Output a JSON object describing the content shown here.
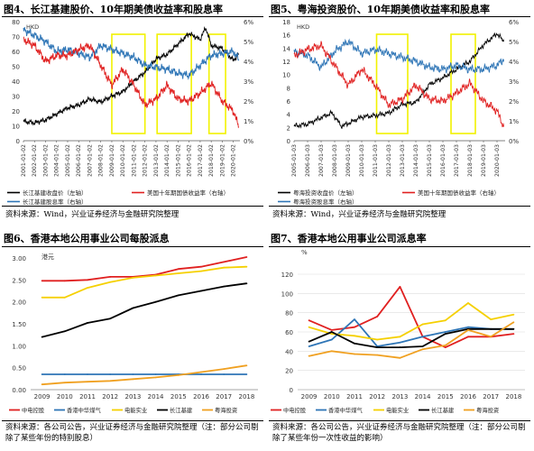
{
  "panels": {
    "fig4": {
      "title": "图4、长江基建股价、10年期美债收益率和股息率",
      "source": "资料来源：Wind，兴业证券经济与金融研究院整理"
    },
    "fig5": {
      "title": "图5、粤海投资股价、10年期美债收益率和股息率",
      "source": "资料来源：Wind，兴业证券经济与金融研究院整理"
    },
    "fig6": {
      "title": "图6、香港本地公用事业公司每股派息",
      "source": "资料来源：各公司公告，兴业证券经济与金融研究院整理（注：部分公司剔除了某些年份的特别股息）"
    },
    "fig7": {
      "title": "图7、香港本地公用事业公司派息率",
      "source": "资料来源：各公司公告，兴业证券经济与金融研究院整理（注：部分公司剔除了某些年份一次性收益的影响）"
    }
  },
  "chart_data": [
    {
      "id": "fig4",
      "type": "line",
      "unit_left": "HKD",
      "x": [
        "2001-01-02",
        "2002-01-02",
        "2003-01-02",
        "2004-01-02",
        "2005-01-02",
        "2006-01-02",
        "2007-01-02",
        "2008-01-02",
        "2009-01-02",
        "2010-01-02",
        "2011-01-02",
        "2012-01-02",
        "2013-01-02",
        "2014-01-02",
        "2015-01-02",
        "2016-01-02",
        "2017-01-02",
        "2018-01-02",
        "2019-01-02",
        "2020-01-02"
      ],
      "xlim": [
        2001,
        2020.6
      ],
      "ylim_left": [
        0,
        80
      ],
      "yticks_left": [
        0,
        10,
        20,
        30,
        40,
        50,
        60,
        70,
        80
      ],
      "ylim_right": [
        0,
        6
      ],
      "yticks_right": [
        "0%",
        "1%",
        "2%",
        "3%",
        "4%",
        "5%",
        "6%"
      ],
      "highlight_ranges": [
        [
          2009.0,
          2012.0
        ],
        [
          2013.1,
          2016.2
        ],
        [
          2017.8,
          2019.3
        ]
      ],
      "series": [
        {
          "name": "长江基建收盘价（左轴）",
          "axis": "left",
          "color": "#000000",
          "points": [
            [
              2001,
              13
            ],
            [
              2002,
              12
            ],
            [
              2003,
              14
            ],
            [
              2004,
              18
            ],
            [
              2005,
              22
            ],
            [
              2006,
              24
            ],
            [
              2007,
              28
            ],
            [
              2008,
              26
            ],
            [
              2009,
              30
            ],
            [
              2010,
              33
            ],
            [
              2011,
              40
            ],
            [
              2012,
              46
            ],
            [
              2013,
              55
            ],
            [
              2014,
              58
            ],
            [
              2015,
              65
            ],
            [
              2016,
              72
            ],
            [
              2017,
              68
            ],
            [
              2017.5,
              76
            ],
            [
              2018,
              64
            ],
            [
              2019,
              62
            ],
            [
              2020,
              54
            ],
            [
              2020.5,
              58
            ]
          ]
        },
        {
          "name": "长江基建股息率（右轴）",
          "axis": "right",
          "color": "#2e75b6",
          "points": [
            [
              2001,
              5.6
            ],
            [
              2002,
              5.3
            ],
            [
              2003,
              5.0
            ],
            [
              2004,
              4.5
            ],
            [
              2005,
              4.6
            ],
            [
              2006,
              4.4
            ],
            [
              2007,
              4.2
            ],
            [
              2008,
              4.8
            ],
            [
              2009,
              4.6
            ],
            [
              2010,
              4.4
            ],
            [
              2011,
              4.2
            ],
            [
              2012,
              3.8
            ],
            [
              2013,
              3.7
            ],
            [
              2014,
              3.6
            ],
            [
              2015,
              3.4
            ],
            [
              2016,
              3.3
            ],
            [
              2017,
              3.8
            ],
            [
              2018,
              4.3
            ],
            [
              2019,
              4.4
            ],
            [
              2020,
              4.5
            ],
            [
              2020.5,
              4.1
            ]
          ]
        },
        {
          "name": "美国十年期国债收益率（右轴）",
          "axis": "right",
          "color": "#e02020",
          "points": [
            [
              2001,
              5.1
            ],
            [
              2002,
              4.8
            ],
            [
              2003,
              4.0
            ],
            [
              2004,
              4.3
            ],
            [
              2005,
              4.3
            ],
            [
              2006,
              4.6
            ],
            [
              2007,
              4.8
            ],
            [
              2008,
              3.8
            ],
            [
              2009,
              2.8
            ],
            [
              2010,
              3.6
            ],
            [
              2011,
              2.8
            ],
            [
              2012,
              1.8
            ],
            [
              2013,
              2.1
            ],
            [
              2014,
              2.8
            ],
            [
              2015,
              2.1
            ],
            [
              2016,
              2.0
            ],
            [
              2017,
              2.4
            ],
            [
              2018,
              2.9
            ],
            [
              2019,
              2.0
            ],
            [
              2020,
              1.5
            ],
            [
              2020.5,
              0.7
            ]
          ]
        }
      ]
    },
    {
      "id": "fig5",
      "type": "line",
      "unit_left": "HKD",
      "x": [
        "2005-01-03",
        "2006-01-03",
        "2007-01-03",
        "2008-01-03",
        "2009-01-03",
        "2010-01-03",
        "2011-01-03",
        "2012-01-03",
        "2013-01-03",
        "2014-01-03",
        "2015-01-03",
        "2016-01-03",
        "2017-01-03",
        "2018-01-03",
        "2019-01-03",
        "2020-01-03"
      ],
      "xlim": [
        2005,
        2020.6
      ],
      "ylim_left": [
        0,
        18
      ],
      "yticks_left": [
        0,
        2,
        4,
        6,
        8,
        10,
        12,
        14,
        16,
        18
      ],
      "ylim_right": [
        0,
        6
      ],
      "yticks_right": [
        "0%",
        "1%",
        "2%",
        "3%",
        "4%",
        "5%",
        "6%"
      ],
      "highlight_ranges": [
        [
          2011.1,
          2013.4
        ],
        [
          2016.6,
          2018.4
        ]
      ],
      "series": [
        {
          "name": "粤海投资收盘价（左轴）",
          "axis": "left",
          "color": "#000000",
          "points": [
            [
              2005,
              2.2
            ],
            [
              2006,
              2.5
            ],
            [
              2007,
              3.5
            ],
            [
              2007.8,
              4.2
            ],
            [
              2008.5,
              2.2
            ],
            [
              2009,
              2.6
            ],
            [
              2010,
              3.6
            ],
            [
              2011,
              3.8
            ],
            [
              2012,
              4.2
            ],
            [
              2013,
              5.5
            ],
            [
              2014,
              5.8
            ],
            [
              2015,
              8.5
            ],
            [
              2016,
              9.5
            ],
            [
              2017,
              10.8
            ],
            [
              2018,
              12.0
            ],
            [
              2019,
              14.5
            ],
            [
              2020,
              16.2
            ],
            [
              2020.5,
              15.0
            ]
          ]
        },
        {
          "name": "粤海投资股息率（右轴）",
          "axis": "right",
          "color": "#2e75b6",
          "points": [
            [
              2005,
              4.5
            ],
            [
              2006,
              4.3
            ],
            [
              2007,
              3.7
            ],
            [
              2008,
              4.5
            ],
            [
              2009,
              5.0
            ],
            [
              2010,
              4.4
            ],
            [
              2011,
              4.6
            ],
            [
              2012,
              4.4
            ],
            [
              2013,
              4.2
            ],
            [
              2014,
              4.0
            ],
            [
              2015,
              3.7
            ],
            [
              2016,
              3.6
            ],
            [
              2017,
              3.8
            ],
            [
              2018,
              3.6
            ],
            [
              2019,
              3.6
            ],
            [
              2020,
              3.8
            ],
            [
              2020.5,
              4.1
            ]
          ]
        },
        {
          "name": "美国十年期国债收益率（右轴）",
          "axis": "right",
          "color": "#e02020",
          "points": [
            [
              2005,
              4.3
            ],
            [
              2006,
              4.6
            ],
            [
              2007,
              4.8
            ],
            [
              2008,
              3.8
            ],
            [
              2009,
              2.8
            ],
            [
              2010,
              3.6
            ],
            [
              2011,
              2.8
            ],
            [
              2012,
              1.8
            ],
            [
              2013,
              2.1
            ],
            [
              2014,
              2.8
            ],
            [
              2015,
              2.1
            ],
            [
              2016,
              2.0
            ],
            [
              2017,
              2.4
            ],
            [
              2018,
              2.9
            ],
            [
              2019,
              2.0
            ],
            [
              2020,
              1.5
            ],
            [
              2020.5,
              0.7
            ]
          ]
        }
      ]
    },
    {
      "id": "fig6",
      "type": "line",
      "unit_left": "港元",
      "categories": [
        "2009",
        "2010",
        "2011",
        "2012",
        "2013",
        "2014",
        "2015",
        "2016",
        "2017",
        "2018"
      ],
      "ylim": [
        0,
        3
      ],
      "yticks": [
        "0.00",
        "0.50",
        "1.00",
        "1.50",
        "2.00",
        "2.50",
        "3.00"
      ],
      "series": [
        {
          "name": "中电控股",
          "color": "#e02020",
          "values": [
            2.48,
            2.48,
            2.5,
            2.57,
            2.57,
            2.62,
            2.75,
            2.8,
            2.91,
            3.02
          ]
        },
        {
          "name": "香港中华煤气",
          "color": "#2e75b6",
          "values": [
            0.35,
            0.35,
            0.35,
            0.35,
            0.35,
            0.35,
            0.35,
            0.35,
            0.35,
            0.35
          ]
        },
        {
          "name": "电能实业",
          "color": "#f5d000",
          "values": [
            2.1,
            2.1,
            2.32,
            2.45,
            2.55,
            2.6,
            2.65,
            2.7,
            2.78,
            2.8
          ]
        },
        {
          "name": "长江基建",
          "color": "#000000",
          "values": [
            1.2,
            1.33,
            1.52,
            1.62,
            1.86,
            2.0,
            2.15,
            2.25,
            2.35,
            2.42
          ]
        },
        {
          "name": "粤海投资",
          "color": "#f0a020",
          "values": [
            0.12,
            0.16,
            0.18,
            0.2,
            0.24,
            0.28,
            0.33,
            0.4,
            0.47,
            0.55
          ]
        }
      ]
    },
    {
      "id": "fig7",
      "type": "line",
      "unit_left": "%",
      "categories": [
        "2009",
        "2010",
        "2011",
        "2012",
        "2013",
        "2014",
        "2015",
        "2016",
        "2017",
        "2018"
      ],
      "ylim": [
        0,
        120
      ],
      "yticks": [
        0,
        20,
        40,
        60,
        80,
        100,
        120
      ],
      "series": [
        {
          "name": "中电控股",
          "color": "#e02020",
          "values": [
            72,
            62,
            65,
            76,
            107,
            55,
            44,
            55,
            55,
            58
          ]
        },
        {
          "name": "香港中华煤气",
          "color": "#2e75b6",
          "values": [
            45,
            52,
            73,
            45,
            49,
            55,
            60,
            65,
            63,
            63
          ]
        },
        {
          "name": "电能实业",
          "color": "#f5d000",
          "values": [
            65,
            58,
            56,
            52,
            55,
            68,
            72,
            90,
            73,
            78
          ]
        },
        {
          "name": "长江基建",
          "color": "#000000",
          "values": [
            50,
            60,
            48,
            44,
            44,
            45,
            58,
            63,
            63,
            63
          ]
        },
        {
          "name": "粤海投资",
          "color": "#f0a020",
          "values": [
            35,
            40,
            37,
            36,
            33,
            42,
            46,
            62,
            55,
            70
          ]
        }
      ]
    }
  ]
}
